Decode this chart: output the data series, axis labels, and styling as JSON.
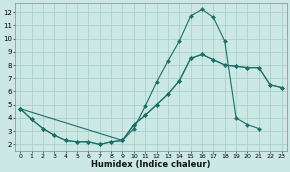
{
  "xlabel": "Humidex (Indice chaleur)",
  "bg_color": "#cce8e4",
  "grid_color": "#a8ccc8",
  "line_color": "#1a7068",
  "xlim": [
    -0.5,
    23.5
  ],
  "ylim": [
    1.5,
    12.7
  ],
  "xticks": [
    0,
    1,
    2,
    3,
    4,
    5,
    6,
    7,
    8,
    9,
    10,
    11,
    12,
    13,
    14,
    15,
    16,
    17,
    18,
    19,
    20,
    21,
    22,
    23
  ],
  "yticks": [
    2,
    3,
    4,
    5,
    6,
    7,
    8,
    9,
    10,
    11,
    12
  ],
  "curve1_x": [
    0,
    1,
    2,
    3,
    4,
    5,
    6,
    7,
    8,
    9,
    10,
    11,
    12,
    13,
    14,
    15,
    16,
    17,
    18,
    19,
    20,
    21,
    22,
    23
  ],
  "curve1_y": [
    4.7,
    3.9,
    3.2,
    2.7,
    2.3,
    2.2,
    2.2,
    2.0,
    2.2,
    2.3,
    3.2,
    4.9,
    6.7,
    8.3,
    9.8,
    11.7,
    12.2,
    11.6,
    9.8,
    4.0,
    3.5,
    3.2,
    null,
    null
  ],
  "curve2_x": [
    0,
    1,
    2,
    3,
    4,
    5,
    6,
    7,
    8,
    9,
    10,
    11,
    12,
    13,
    14,
    15,
    16,
    17,
    18,
    19,
    20,
    21,
    22,
    23
  ],
  "curve2_y": [
    4.7,
    3.9,
    3.2,
    2.7,
    2.3,
    2.2,
    2.2,
    2.0,
    2.2,
    2.3,
    3.5,
    4.2,
    5.0,
    5.8,
    6.8,
    8.5,
    8.8,
    8.4,
    8.0,
    7.9,
    7.8,
    7.8,
    6.5,
    6.3
  ],
  "curve3_x": [
    0,
    9,
    10,
    11,
    12,
    13,
    14,
    15,
    16,
    17,
    18,
    19,
    20,
    21,
    22,
    23
  ],
  "curve3_y": [
    4.7,
    2.3,
    3.5,
    4.2,
    5.0,
    5.8,
    6.8,
    8.5,
    8.8,
    8.4,
    8.0,
    7.9,
    7.8,
    7.8,
    6.5,
    6.3
  ]
}
